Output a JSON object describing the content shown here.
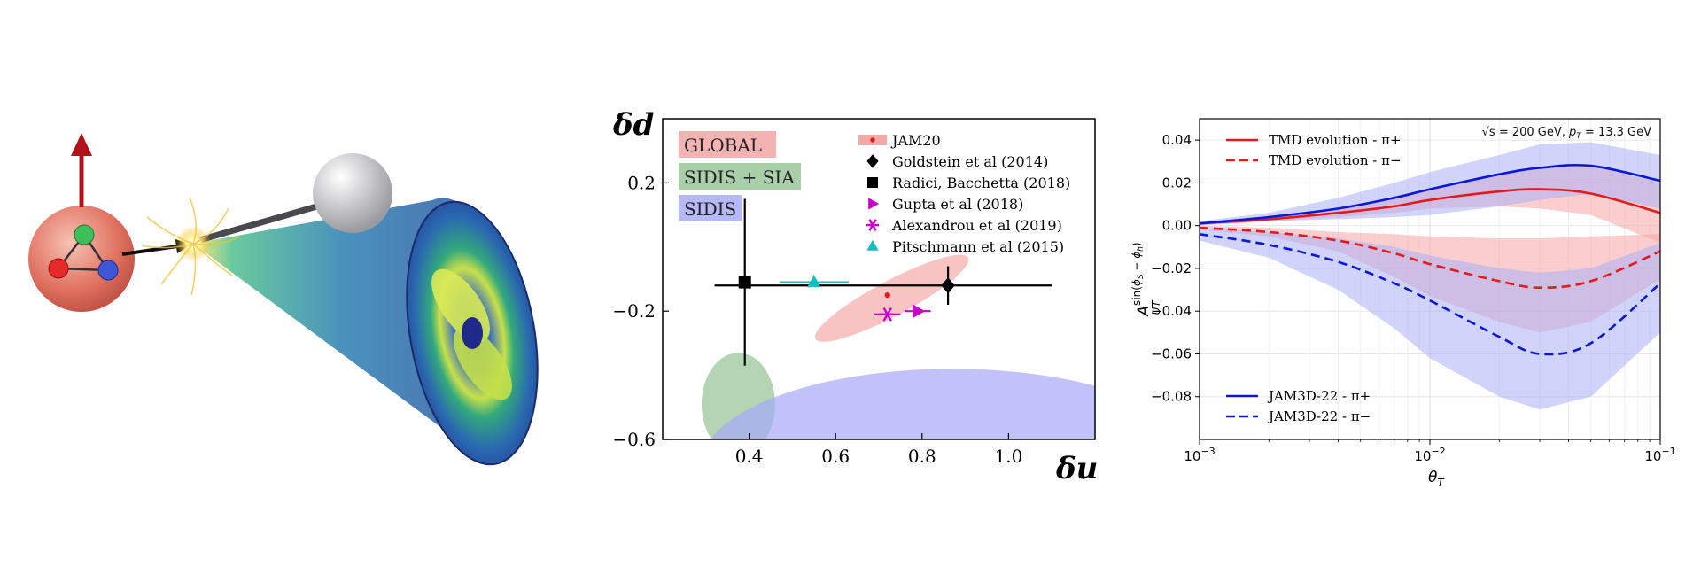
{
  "chart_data": [
    {
      "type": "scatter",
      "xlabel": "δu",
      "ylabel": "δd",
      "xlim": [
        0.2,
        1.2
      ],
      "ylim": [
        -0.6,
        0.4
      ],
      "xticks": [
        0.4,
        0.6,
        0.8,
        1.0
      ],
      "yticks": [
        0.2,
        -0.2,
        -0.6
      ],
      "xtick_labels": [
        "0.4",
        "0.6",
        "0.8",
        "1.0"
      ],
      "ytick_labels": [
        "0.2",
        "−0.2",
        "−0.6"
      ],
      "region_labels": [
        {
          "text": "GLOBAL",
          "color": "#f4b3b3"
        },
        {
          "text": "SIDIS + SIA",
          "color": "#a9cfa9"
        },
        {
          "text": "SIDIS",
          "color": "#b6b9f5"
        }
      ],
      "ellipses": [
        {
          "name": "GLOBAL",
          "cx": 0.73,
          "cy": -0.16,
          "rx": 0.2,
          "ry": 0.055,
          "angle": 28,
          "color": "#f4a9a9"
        },
        {
          "name": "SIDIS + SIA",
          "cx": 0.375,
          "cy": -0.49,
          "rx": 0.085,
          "ry": 0.16,
          "angle": 0,
          "color": "#94c394"
        },
        {
          "name": "SIDIS",
          "cx": 0.87,
          "cy": -0.68,
          "rx": 0.58,
          "ry": 0.3,
          "angle": 0,
          "color": "#a5a8f7"
        }
      ],
      "series": [
        {
          "name": "JAM20",
          "color": "#e31a1c",
          "marker": "dot",
          "x": 0.72,
          "y": -0.15,
          "xerr": 0,
          "yerr": 0
        },
        {
          "name": "Goldstein et al (2014)",
          "color": "#000000",
          "marker": "diamond",
          "x": 0.86,
          "y": -0.12,
          "xerr": [
            0.54,
            0.24
          ],
          "yerr": 0.06
        },
        {
          "name": "Radici, Bacchetta (2018)",
          "color": "#000000",
          "marker": "square",
          "x": 0.39,
          "y": -0.11,
          "xerr": 0,
          "yerr": [
            0.26,
            0.26
          ]
        },
        {
          "name": "Gupta et al (2018)",
          "color": "#c800c8",
          "marker": "triangle-right",
          "x": 0.79,
          "y": -0.2,
          "xerr": 0.03,
          "yerr": 0
        },
        {
          "name": "Alexandrou et al (2019)",
          "color": "#c800c8",
          "marker": "asterisk",
          "x": 0.72,
          "y": -0.21,
          "xerr": 0.03,
          "yerr": 0
        },
        {
          "name": "Pitschmann et al (2015)",
          "color": "#17bebb",
          "marker": "triangle-up",
          "x": 0.55,
          "y": -0.11,
          "xerr": 0.08,
          "yerr": 0
        }
      ]
    },
    {
      "type": "line",
      "xlabel": "θT",
      "ylabel": "A_UT^sin(φs − φh)",
      "xscale": "log",
      "xlim": [
        0.001,
        0.1
      ],
      "ylim": [
        -0.1,
        0.05
      ],
      "xticks": [
        0.001,
        0.01,
        0.1
      ],
      "yticks": [
        0.04,
        0.02,
        0.0,
        -0.02,
        -0.04,
        -0.06,
        -0.08
      ],
      "ytick_labels": [
        "0.04",
        "0.02",
        "0.00",
        "−0.02",
        "−0.04",
        "−0.06",
        "−0.08"
      ],
      "annotation": "√s = 200 GeV, pT = 13.3 GeV",
      "grid": true,
      "series": [
        {
          "name": "TMD evolution - π+",
          "color": "#e31a1c",
          "dash": false,
          "x": [
            0.001,
            0.002,
            0.004,
            0.007,
            0.01,
            0.02,
            0.03,
            0.05,
            0.1
          ],
          "y": [
            0.001,
            0.003,
            0.006,
            0.009,
            0.012,
            0.016,
            0.017,
            0.015,
            0.006
          ],
          "band_upper": [
            0.0015,
            0.004,
            0.008,
            0.013,
            0.017,
            0.024,
            0.027,
            0.028,
            0.02
          ],
          "band_lower": [
            0.0005,
            0.002,
            0.004,
            0.006,
            0.008,
            0.009,
            0.008,
            0.005,
            -0.008
          ]
        },
        {
          "name": "TMD evolution - π−",
          "color": "#e31a1c",
          "dash": true,
          "x": [
            0.001,
            0.002,
            0.004,
            0.007,
            0.01,
            0.02,
            0.03,
            0.05,
            0.1
          ],
          "y": [
            -0.001,
            -0.003,
            -0.007,
            -0.013,
            -0.018,
            -0.026,
            -0.029,
            -0.026,
            -0.012
          ],
          "band_upper": [
            0.0,
            -0.001,
            -0.003,
            -0.004,
            -0.005,
            -0.006,
            -0.006,
            -0.005,
            -0.004
          ],
          "band_lower": [
            -0.002,
            -0.005,
            -0.012,
            -0.024,
            -0.033,
            -0.045,
            -0.05,
            -0.045,
            -0.025
          ]
        },
        {
          "name": "JAM3D-22 - π+",
          "color": "#0b17d6",
          "dash": false,
          "x": [
            0.001,
            0.002,
            0.004,
            0.007,
            0.01,
            0.02,
            0.03,
            0.05,
            0.1
          ],
          "y": [
            0.001,
            0.004,
            0.008,
            0.013,
            0.017,
            0.024,
            0.027,
            0.028,
            0.021
          ],
          "band_upper": [
            0.002,
            0.006,
            0.013,
            0.02,
            0.025,
            0.033,
            0.038,
            0.039,
            0.033
          ],
          "band_lower": [
            0.0,
            0.002,
            0.003,
            0.004,
            0.005,
            0.009,
            0.012,
            0.015,
            0.008
          ]
        },
        {
          "name": "JAM3D-22 - π−",
          "color": "#0b17d6",
          "dash": true,
          "x": [
            0.001,
            0.002,
            0.004,
            0.007,
            0.01,
            0.02,
            0.03,
            0.05,
            0.1
          ],
          "y": [
            -0.004,
            -0.009,
            -0.017,
            -0.027,
            -0.035,
            -0.052,
            -0.06,
            -0.055,
            -0.027
          ],
          "band_upper": [
            -0.001,
            -0.003,
            -0.006,
            -0.01,
            -0.014,
            -0.02,
            -0.022,
            -0.02,
            -0.008
          ],
          "band_lower": [
            -0.007,
            -0.015,
            -0.03,
            -0.048,
            -0.062,
            -0.08,
            -0.086,
            -0.08,
            -0.05
          ]
        }
      ]
    }
  ]
}
